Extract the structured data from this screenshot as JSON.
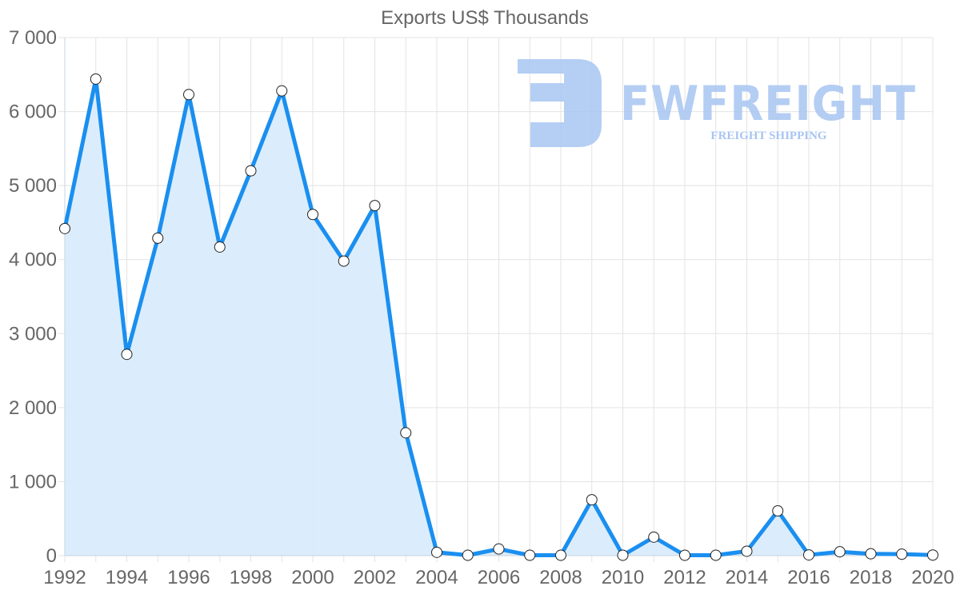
{
  "chart_data": {
    "type": "line",
    "title": "Exports US$ Thousands",
    "xlabel": "",
    "ylabel": "",
    "x": [
      1992,
      1993,
      1994,
      1995,
      1996,
      1997,
      1998,
      1999,
      2000,
      2001,
      2002,
      2003,
      2004,
      2005,
      2006,
      2007,
      2008,
      2009,
      2010,
      2011,
      2012,
      2013,
      2014,
      2015,
      2016,
      2017,
      2018,
      2019,
      2020
    ],
    "series": [
      {
        "name": "Exports US$ Thousands",
        "values": [
          4420,
          6440,
          2720,
          4290,
          6230,
          4170,
          5200,
          6280,
          4610,
          3980,
          4730,
          1660,
          45,
          5,
          90,
          5,
          5,
          755,
          5,
          250,
          5,
          5,
          60,
          605,
          10,
          52,
          25,
          20,
          8
        ],
        "color": "#1a8ff0",
        "fill": "#d9ecfc"
      }
    ],
    "xlim": [
      1992,
      2020
    ],
    "ylim": [
      0,
      7000
    ],
    "x_tick_labels": [
      "1992",
      "1994",
      "1996",
      "1998",
      "2000",
      "2002",
      "2004",
      "2006",
      "2008",
      "2010",
      "2012",
      "2014",
      "2016",
      "2018",
      "2020"
    ],
    "y_tick_labels": [
      "0",
      "1 000",
      "2 000",
      "3 000",
      "4 000",
      "5 000",
      "6 000",
      "7 000"
    ],
    "y_ticks": [
      0,
      1000,
      2000,
      3000,
      4000,
      5000,
      6000,
      7000
    ],
    "grid": true,
    "legend": "none",
    "area_filled": true,
    "markers": "circle-white"
  },
  "watermark": {
    "brand": "FWFREIGHT",
    "tagline": "FREIGHT SHIPPING",
    "color": "#a7c5f2"
  }
}
